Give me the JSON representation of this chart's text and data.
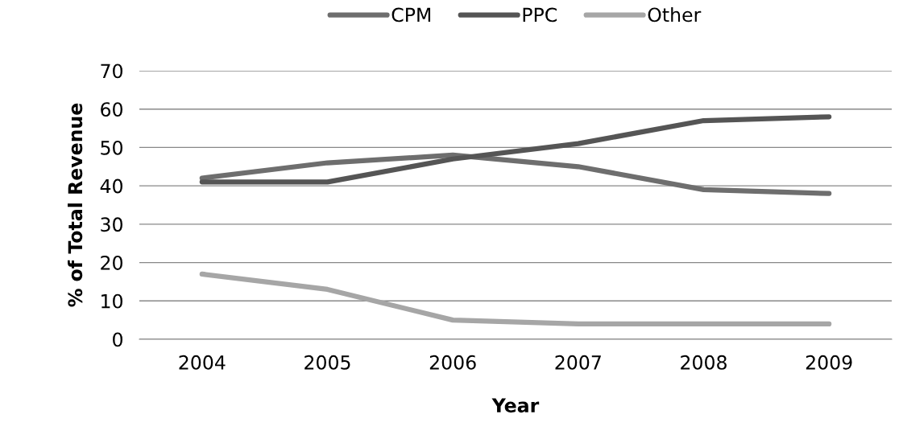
{
  "chart_data": {
    "type": "line",
    "xlabel": "Year",
    "ylabel": "% of Total Revenue",
    "categories": [
      "2004",
      "2005",
      "2006",
      "2007",
      "2008",
      "2009"
    ],
    "series": [
      {
        "name": "CPM",
        "color": "#6e6e6e",
        "values": [
          42,
          46,
          48,
          45,
          39,
          38
        ]
      },
      {
        "name": "PPC",
        "color": "#555555",
        "values": [
          41,
          41,
          47,
          51,
          57,
          58
        ]
      },
      {
        "name": "Other",
        "color": "#a6a6a6",
        "values": [
          17,
          13,
          5,
          4,
          4,
          4
        ]
      }
    ],
    "ylim": [
      0,
      70
    ],
    "yticks": [
      0,
      10,
      20,
      30,
      40,
      50,
      60,
      70
    ],
    "grid": "y",
    "legend": "top",
    "marker": "none",
    "line_style": "solid"
  }
}
